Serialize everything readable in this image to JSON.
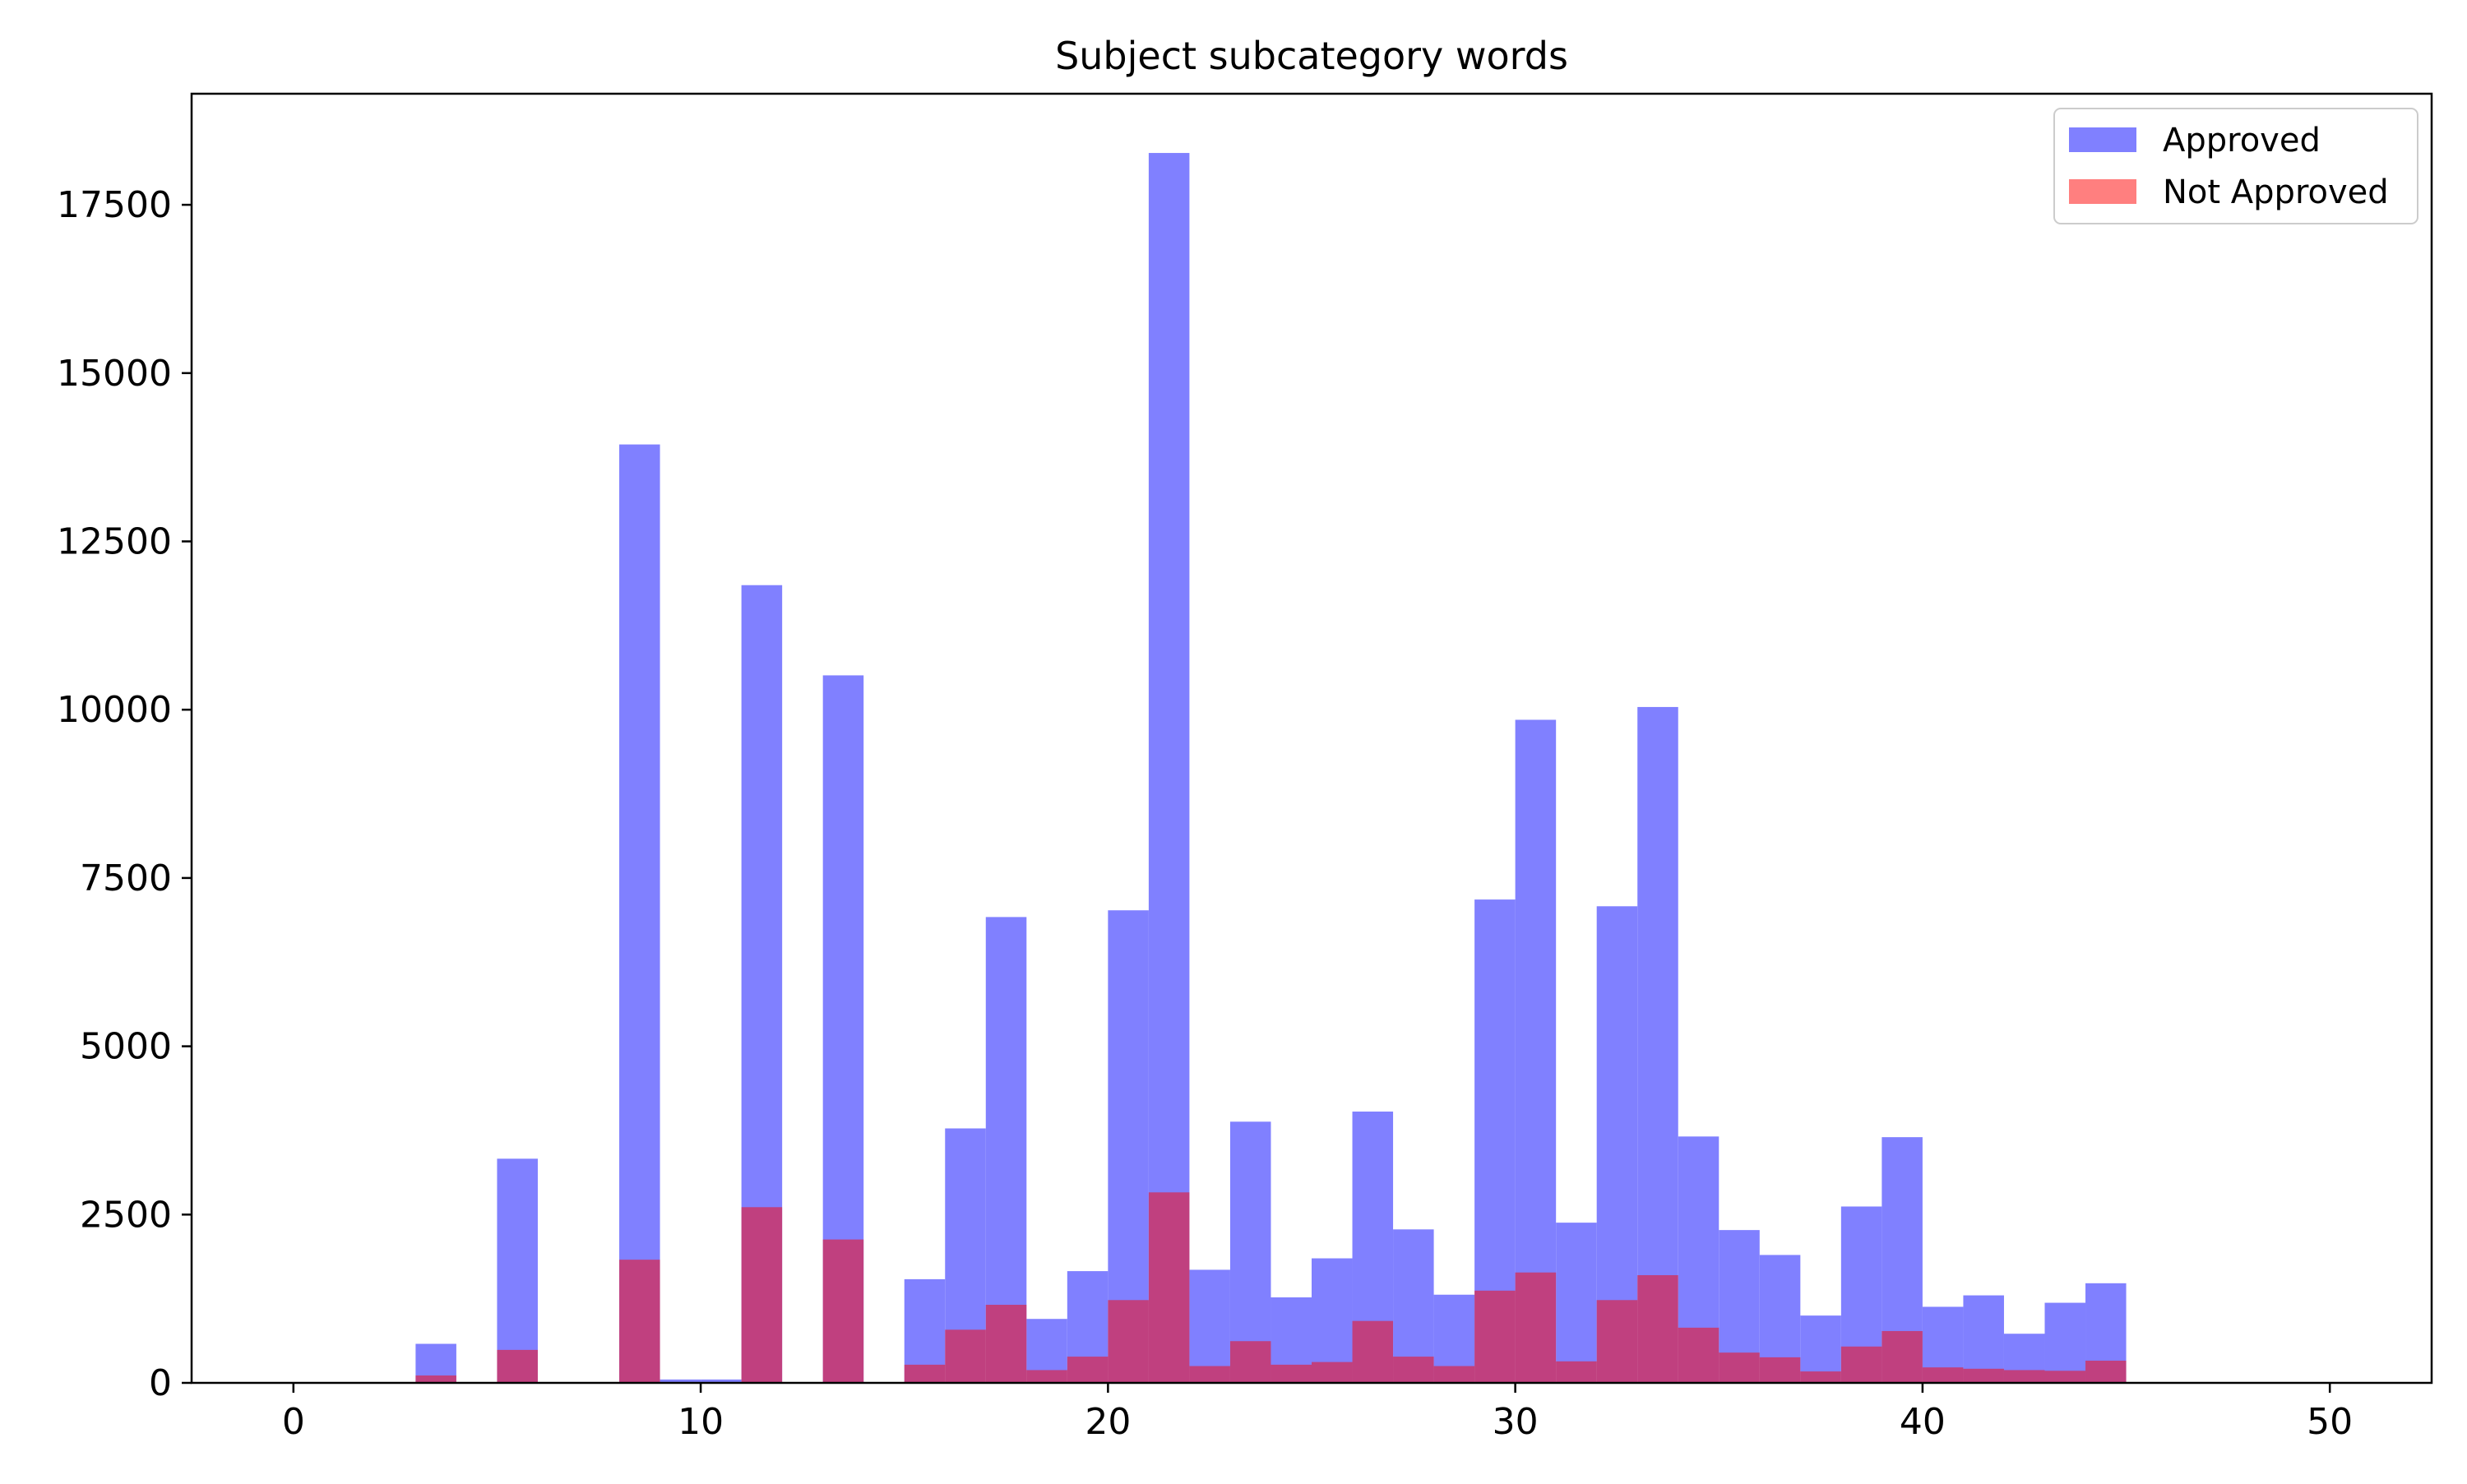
{
  "chart_data": {
    "type": "bar",
    "title": "Subject subcategory words",
    "xlabel": "",
    "ylabel": "",
    "xlim": [
      -2.5,
      52.5
    ],
    "ylim": [
      0,
      19150
    ],
    "bin_start": 0,
    "bin_width": 1,
    "x_ticks": [
      0,
      10,
      20,
      30,
      40,
      50
    ],
    "y_ticks": [
      0,
      2500,
      5000,
      7500,
      10000,
      12500,
      15000,
      17500
    ],
    "grid": false,
    "legend_position": "top-right",
    "series": [
      {
        "name": "Approved",
        "color": "#8080ff",
        "values": [
          0,
          0,
          0,
          580,
          0,
          3330,
          0,
          0,
          13940,
          50,
          50,
          11850,
          0,
          10510,
          0,
          1540,
          3780,
          6920,
          950,
          1660,
          7020,
          18270,
          1680,
          3880,
          1270,
          1850,
          4030,
          2280,
          1310,
          7180,
          9850,
          2380,
          7080,
          10040,
          3660,
          2270,
          1900,
          1000,
          2620,
          3650,
          1130,
          1300,
          730,
          1190,
          1480,
          0,
          0,
          0,
          0,
          0
        ]
      },
      {
        "name": "Not Approved",
        "color": "#ff8080",
        "values": [
          0,
          0,
          0,
          110,
          0,
          490,
          0,
          0,
          1830,
          10,
          10,
          2610,
          0,
          2130,
          0,
          270,
          790,
          1160,
          190,
          390,
          1230,
          2830,
          250,
          620,
          270,
          310,
          920,
          390,
          250,
          1370,
          1640,
          320,
          1230,
          1600,
          820,
          450,
          380,
          170,
          540,
          770,
          230,
          210,
          190,
          180,
          330,
          0,
          0,
          0,
          0,
          0
        ]
      }
    ],
    "overlap_color": "#c03b7b"
  }
}
